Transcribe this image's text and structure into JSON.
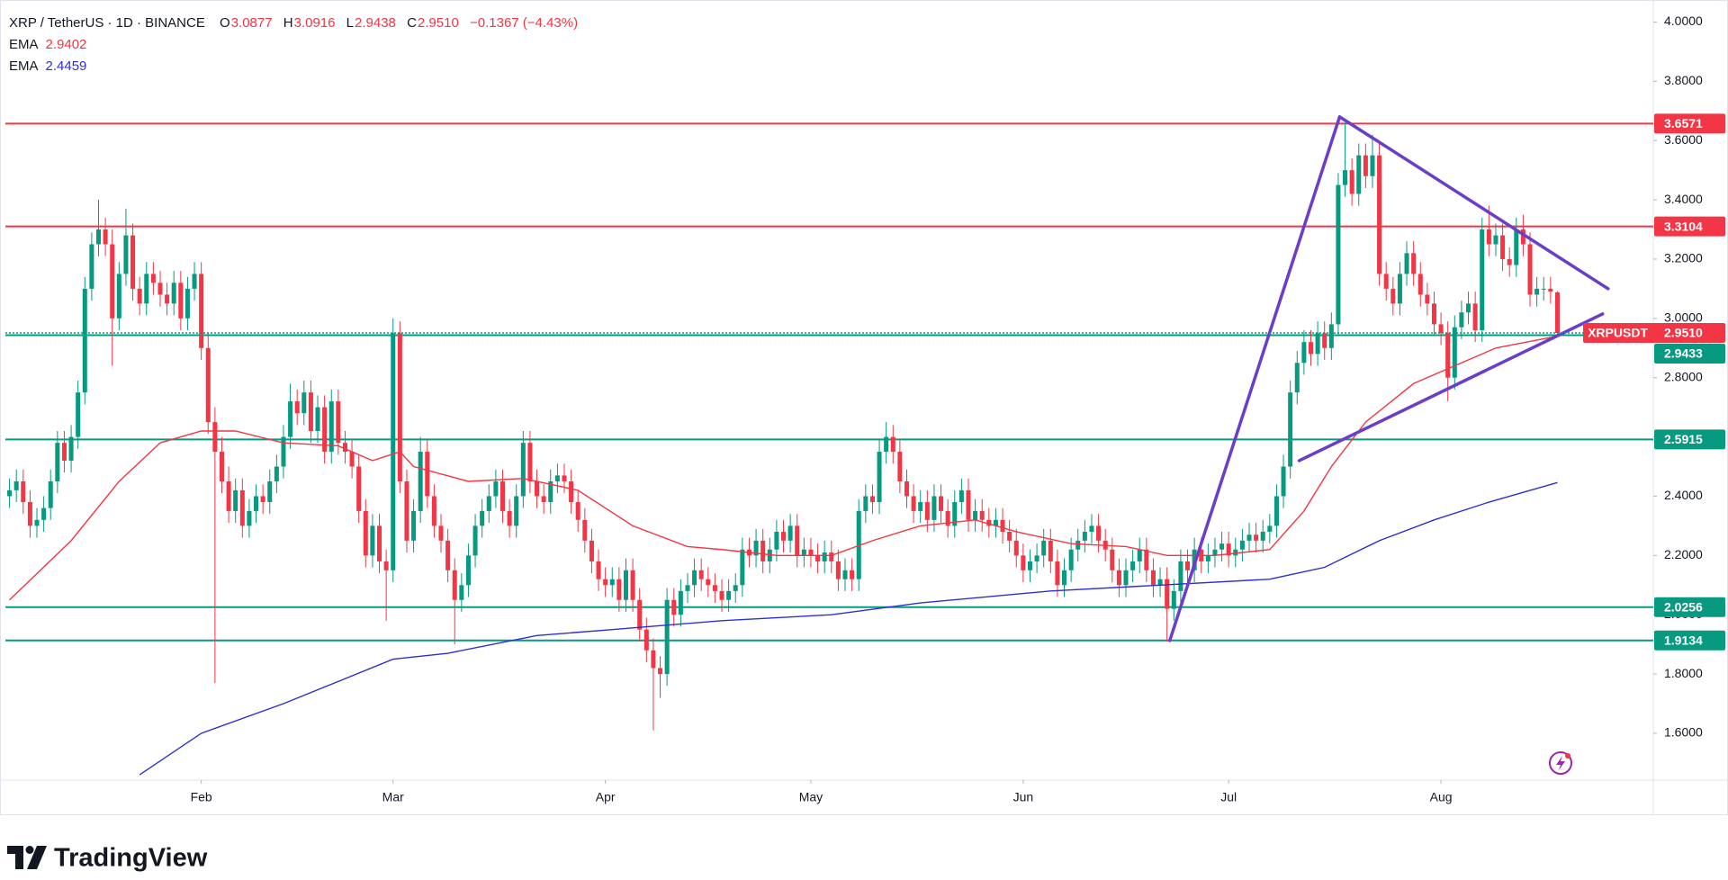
{
  "chart_data": {
    "type": "candlestick",
    "title": "XRP / TetherUS · 1D · BINANCE",
    "ohlc_labels": [
      "O",
      "H",
      "L",
      "C"
    ],
    "change": "−0.1367 (−4.43%)",
    "price_label": "2.9510",
    "symbol_tag": "XRPUSDT",
    "up_color": "#089981",
    "down_color": "#f23645",
    "open": [
      2.4,
      2.42,
      2.45,
      2.38,
      2.3,
      2.32,
      2.36,
      2.45,
      2.58,
      2.52,
      2.6,
      2.75,
      3.1,
      3.25,
      3.3,
      3.25,
      3.0,
      3.15,
      3.28,
      3.1,
      3.05,
      3.15,
      3.12,
      3.08,
      3.05,
      3.12,
      3.0,
      3.1,
      3.15,
      2.9,
      2.65,
      2.55,
      2.45,
      2.35,
      2.42,
      2.3,
      2.35,
      2.4,
      2.38,
      2.45,
      2.5,
      2.6,
      2.72,
      2.68,
      2.75,
      2.62,
      2.7,
      2.55,
      2.72,
      2.58,
      2.55,
      2.5,
      2.35,
      2.2,
      2.3,
      2.18,
      2.15,
      2.95,
      2.45,
      2.25,
      2.35,
      2.55,
      2.4,
      2.3,
      2.25,
      2.15,
      2.05,
      2.1,
      2.2,
      2.3,
      2.35,
      2.4,
      2.45,
      2.35,
      2.3,
      2.4,
      2.58,
      2.45,
      2.4,
      2.38,
      2.45,
      2.47,
      2.45,
      2.38,
      2.32,
      2.25,
      2.18,
      2.12,
      2.1,
      2.12,
      2.05,
      2.15,
      2.05,
      1.95,
      1.88,
      1.82,
      1.8,
      2.05,
      2.0,
      2.08,
      2.1,
      2.15,
      2.12,
      2.1,
      2.08,
      2.05,
      2.08,
      2.1,
      2.22,
      2.2,
      2.25,
      2.18,
      2.22,
      2.28,
      2.25,
      2.3,
      2.2,
      2.22,
      2.2,
      2.18,
      2.21,
      2.18,
      2.12,
      2.15,
      2.12,
      2.35,
      2.4,
      2.38,
      2.55,
      2.6,
      2.55,
      2.45,
      2.4,
      2.35,
      2.38,
      2.32,
      2.4,
      2.35,
      2.3,
      2.38,
      2.42,
      2.32,
      2.35,
      2.32,
      2.3,
      2.32,
      2.28,
      2.25,
      2.2,
      2.15,
      2.18,
      2.2,
      2.25,
      2.18,
      2.1,
      2.15,
      2.22,
      2.25,
      2.28,
      2.3,
      2.25,
      2.22,
      2.15,
      2.1,
      2.15,
      2.18,
      2.22,
      2.15,
      2.1,
      2.12,
      2.02,
      2.08,
      2.18,
      2.15,
      2.22,
      2.18,
      2.2,
      2.22,
      2.24,
      2.2,
      2.22,
      2.25,
      2.27,
      2.25,
      2.28,
      2.3,
      2.4,
      2.5,
      2.75,
      2.85,
      2.92,
      2.88,
      2.95,
      2.9,
      2.98,
      3.45,
      3.5,
      3.42,
      3.55,
      3.48,
      3.55,
      3.15,
      3.1,
      3.05,
      3.15,
      3.22,
      3.15,
      3.08,
      3.05,
      2.98,
      2.95,
      2.8,
      2.97,
      3.02,
      3.05,
      2.96,
      3.3,
      3.25,
      3.28,
      3.2,
      3.18,
      3.3,
      3.25,
      3.08,
      3.1,
      3.1,
      3.0877
    ],
    "high": [
      2.46,
      2.49,
      2.49,
      2.42,
      2.36,
      2.4,
      2.49,
      2.62,
      2.62,
      2.64,
      2.79,
      3.14,
      3.29,
      3.4,
      3.34,
      3.3,
      3.19,
      3.37,
      3.32,
      3.14,
      3.19,
      3.19,
      3.16,
      3.12,
      3.16,
      3.16,
      3.14,
      3.19,
      3.19,
      2.95,
      2.7,
      2.6,
      2.5,
      2.46,
      2.46,
      2.39,
      2.44,
      2.44,
      2.49,
      2.54,
      2.64,
      2.78,
      2.76,
      2.79,
      2.79,
      2.74,
      2.74,
      2.76,
      2.76,
      2.62,
      2.59,
      2.54,
      2.39,
      2.34,
      2.34,
      2.22,
      3.0,
      2.99,
      2.49,
      2.39,
      2.6,
      2.59,
      2.44,
      2.34,
      2.29,
      2.19,
      2.14,
      2.24,
      2.34,
      2.39,
      2.44,
      2.49,
      2.49,
      2.39,
      2.44,
      2.62,
      2.62,
      2.49,
      2.44,
      2.49,
      2.51,
      2.51,
      2.49,
      2.42,
      2.36,
      2.29,
      2.22,
      2.16,
      2.16,
      2.16,
      2.19,
      2.19,
      2.09,
      1.99,
      1.92,
      1.86,
      2.09,
      2.09,
      2.12,
      2.14,
      2.19,
      2.19,
      2.16,
      2.14,
      2.12,
      2.12,
      2.14,
      2.26,
      2.26,
      2.29,
      2.29,
      2.26,
      2.32,
      2.32,
      2.34,
      2.34,
      2.26,
      2.26,
      2.24,
      2.25,
      2.25,
      2.22,
      2.19,
      2.19,
      2.39,
      2.44,
      2.44,
      2.59,
      2.65,
      2.64,
      2.59,
      2.49,
      2.44,
      2.42,
      2.42,
      2.44,
      2.44,
      2.39,
      2.42,
      2.46,
      2.46,
      2.39,
      2.39,
      2.36,
      2.36,
      2.36,
      2.32,
      2.29,
      2.24,
      2.22,
      2.24,
      2.29,
      2.29,
      2.22,
      2.19,
      2.26,
      2.29,
      2.32,
      2.34,
      2.34,
      2.29,
      2.26,
      2.19,
      2.19,
      2.22,
      2.26,
      2.26,
      2.19,
      2.16,
      2.16,
      2.12,
      2.22,
      2.22,
      2.26,
      2.26,
      2.24,
      2.26,
      2.28,
      2.28,
      2.26,
      2.29,
      2.31,
      2.31,
      2.32,
      2.34,
      2.44,
      2.54,
      2.79,
      2.89,
      2.96,
      2.96,
      2.99,
      2.99,
      3.02,
      3.49,
      3.66,
      3.54,
      3.59,
      3.59,
      3.62,
      3.59,
      3.19,
      3.14,
      3.19,
      3.26,
      3.26,
      3.19,
      3.12,
      3.09,
      3.02,
      2.99,
      3.01,
      3.06,
      3.09,
      3.09,
      3.34,
      3.38,
      3.32,
      3.32,
      3.24,
      3.34,
      3.35,
      3.29,
      3.14,
      3.14,
      3.14,
      3.0916
    ],
    "low": [
      2.36,
      2.38,
      2.34,
      2.26,
      2.26,
      2.28,
      2.32,
      2.41,
      2.48,
      2.48,
      2.56,
      2.71,
      3.06,
      3.21,
      3.21,
      2.84,
      2.96,
      3.11,
      3.06,
      3.01,
      3.01,
      3.08,
      3.04,
      3.01,
      3.01,
      2.96,
      2.96,
      3.06,
      2.86,
      2.61,
      1.77,
      2.41,
      2.31,
      2.31,
      2.26,
      2.26,
      2.31,
      2.34,
      2.34,
      2.41,
      2.46,
      2.56,
      2.64,
      2.64,
      2.58,
      2.58,
      2.51,
      2.51,
      2.54,
      2.51,
      2.46,
      2.31,
      2.16,
      2.16,
      2.14,
      1.98,
      2.11,
      2.41,
      2.21,
      2.21,
      2.31,
      2.36,
      2.26,
      2.21,
      2.11,
      1.9,
      2.01,
      2.06,
      2.16,
      2.26,
      2.31,
      2.36,
      2.31,
      2.26,
      2.26,
      2.36,
      2.41,
      2.36,
      2.34,
      2.34,
      2.41,
      2.41,
      2.34,
      2.28,
      2.21,
      2.14,
      2.08,
      2.06,
      2.06,
      2.01,
      2.01,
      2.01,
      1.91,
      1.84,
      1.61,
      1.72,
      1.76,
      1.96,
      1.96,
      2.04,
      2.06,
      2.08,
      2.06,
      2.04,
      2.01,
      2.01,
      2.04,
      2.06,
      2.16,
      2.16,
      2.14,
      2.14,
      2.18,
      2.21,
      2.21,
      2.16,
      2.16,
      2.16,
      2.14,
      2.14,
      2.14,
      2.08,
      2.08,
      2.08,
      2.08,
      2.31,
      2.34,
      2.34,
      2.51,
      2.51,
      2.41,
      2.36,
      2.31,
      2.31,
      2.28,
      2.28,
      2.31,
      2.26,
      2.26,
      2.34,
      2.28,
      2.28,
      2.28,
      2.26,
      2.26,
      2.24,
      2.21,
      2.16,
      2.11,
      2.11,
      2.14,
      2.16,
      2.14,
      2.06,
      2.06,
      2.11,
      2.18,
      2.21,
      2.24,
      2.21,
      2.18,
      2.11,
      2.06,
      2.06,
      2.11,
      2.14,
      2.11,
      2.06,
      2.06,
      1.91,
      1.98,
      2.04,
      2.11,
      2.11,
      2.14,
      2.14,
      2.16,
      2.18,
      2.16,
      2.16,
      2.18,
      2.21,
      2.21,
      2.21,
      2.24,
      2.26,
      2.36,
      2.46,
      2.71,
      2.81,
      2.84,
      2.84,
      2.86,
      2.86,
      2.94,
      3.41,
      3.38,
      3.38,
      3.44,
      3.44,
      3.11,
      3.06,
      3.01,
      3.01,
      3.11,
      3.11,
      3.04,
      3.01,
      2.94,
      2.91,
      2.72,
      2.76,
      2.93,
      2.98,
      2.92,
      2.92,
      3.21,
      3.21,
      3.16,
      3.14,
      3.14,
      3.21,
      3.04,
      3.04,
      3.06,
      3.05,
      2.9438
    ],
    "close": [
      2.42,
      2.45,
      2.38,
      2.3,
      2.32,
      2.36,
      2.45,
      2.58,
      2.52,
      2.6,
      2.75,
      3.1,
      3.25,
      3.3,
      3.25,
      3.0,
      3.15,
      3.28,
      3.1,
      3.05,
      3.15,
      3.12,
      3.08,
      3.05,
      3.12,
      3.0,
      3.1,
      3.15,
      2.9,
      2.65,
      2.55,
      2.45,
      2.35,
      2.42,
      2.3,
      2.35,
      2.4,
      2.38,
      2.45,
      2.5,
      2.6,
      2.72,
      2.68,
      2.75,
      2.62,
      2.7,
      2.55,
      2.72,
      2.58,
      2.55,
      2.5,
      2.35,
      2.2,
      2.3,
      2.18,
      2.15,
      2.95,
      2.45,
      2.25,
      2.35,
      2.55,
      2.4,
      2.3,
      2.25,
      2.15,
      2.05,
      2.1,
      2.2,
      2.3,
      2.35,
      2.4,
      2.45,
      2.35,
      2.3,
      2.4,
      2.58,
      2.45,
      2.4,
      2.38,
      2.45,
      2.47,
      2.45,
      2.38,
      2.32,
      2.25,
      2.18,
      2.12,
      2.1,
      2.12,
      2.05,
      2.15,
      2.05,
      1.95,
      1.88,
      1.82,
      1.8,
      2.05,
      2.0,
      2.08,
      2.1,
      2.15,
      2.12,
      2.1,
      2.08,
      2.05,
      2.08,
      2.1,
      2.22,
      2.2,
      2.25,
      2.18,
      2.22,
      2.28,
      2.25,
      2.3,
      2.2,
      2.22,
      2.2,
      2.18,
      2.21,
      2.18,
      2.12,
      2.15,
      2.12,
      2.35,
      2.4,
      2.38,
      2.55,
      2.6,
      2.55,
      2.45,
      2.4,
      2.35,
      2.38,
      2.32,
      2.4,
      2.35,
      2.3,
      2.38,
      2.42,
      2.32,
      2.35,
      2.32,
      2.3,
      2.32,
      2.28,
      2.25,
      2.2,
      2.15,
      2.18,
      2.2,
      2.25,
      2.18,
      2.1,
      2.15,
      2.22,
      2.25,
      2.28,
      2.3,
      2.25,
      2.22,
      2.15,
      2.1,
      2.15,
      2.18,
      2.22,
      2.15,
      2.1,
      2.12,
      2.02,
      2.08,
      2.18,
      2.15,
      2.22,
      2.18,
      2.2,
      2.22,
      2.24,
      2.2,
      2.22,
      2.25,
      2.27,
      2.25,
      2.28,
      2.3,
      2.4,
      2.5,
      2.75,
      2.85,
      2.92,
      2.88,
      2.95,
      2.9,
      2.98,
      3.45,
      3.5,
      3.42,
      3.55,
      3.48,
      3.55,
      3.15,
      3.1,
      3.05,
      3.15,
      3.22,
      3.15,
      3.08,
      3.05,
      2.98,
      2.95,
      2.8,
      2.97,
      3.02,
      3.05,
      2.96,
      3.3,
      3.25,
      3.28,
      3.2,
      3.18,
      3.3,
      3.25,
      3.08,
      3.1,
      3.1,
      3.09,
      2.951
    ],
    "xlim": [
      -0.6,
      240
    ],
    "xticks": [
      {
        "value": 28,
        "label": "Feb"
      },
      {
        "value": 56,
        "label": "Mar"
      },
      {
        "value": 87,
        "label": "Apr"
      },
      {
        "value": 117,
        "label": "May"
      },
      {
        "value": 148,
        "label": "Jun"
      },
      {
        "value": 178,
        "label": "Jul"
      },
      {
        "value": 209,
        "label": "Aug"
      }
    ],
    "ylim": [
      1.442,
      4.056
    ],
    "yticks": [
      {
        "value": 1.6,
        "label": "1.6000"
      },
      {
        "value": 1.8,
        "label": "1.8000"
      },
      {
        "value": 2.0,
        "label": "2.0000"
      },
      {
        "value": 2.2,
        "label": "2.2000"
      },
      {
        "value": 2.4,
        "label": "2.4000"
      },
      {
        "value": 2.6,
        "label": "2.6000"
      },
      {
        "value": 2.8,
        "label": "2.8000"
      },
      {
        "value": 3.0,
        "label": "3.0000"
      },
      {
        "value": 3.2,
        "label": "3.2000"
      },
      {
        "value": 3.4,
        "label": "3.4000"
      },
      {
        "value": 3.6,
        "label": "3.6000"
      },
      {
        "value": 3.8,
        "label": "3.8000"
      },
      {
        "value": 4.0,
        "label": "4.0000"
      }
    ],
    "grid": false,
    "indicators": [
      {
        "name": "EMA",
        "color": "#f23645",
        "x": [
          0,
          9,
          16,
          22,
          28,
          33,
          40,
          48,
          53,
          57,
          59,
          67,
          75,
          83,
          91,
          99,
          104,
          112,
          120,
          126,
          133,
          141,
          147,
          155,
          163,
          169,
          176,
          184,
          189,
          193,
          198,
          205,
          211,
          217,
          226
        ],
        "values": [
          2.05,
          2.25,
          2.45,
          2.58,
          2.62,
          2.62,
          2.58,
          2.57,
          2.52,
          2.55,
          2.5,
          2.45,
          2.46,
          2.42,
          2.3,
          2.23,
          2.22,
          2.2,
          2.2,
          2.25,
          2.3,
          2.32,
          2.28,
          2.24,
          2.23,
          2.2,
          2.2,
          2.22,
          2.35,
          2.5,
          2.65,
          2.78,
          2.84,
          2.9,
          2.9402
        ]
      },
      {
        "name": "EMA",
        "color": "#2f2fd0",
        "x": [
          19,
          28,
          40,
          56,
          64,
          77,
          88,
          104,
          120,
          133,
          152,
          168,
          184,
          192,
          200,
          208,
          216,
          226
        ],
        "values": [
          1.46,
          1.6,
          1.7,
          1.85,
          1.87,
          1.93,
          1.95,
          1.98,
          2.0,
          2.04,
          2.08,
          2.1,
          2.12,
          2.16,
          2.25,
          2.32,
          2.38,
          2.4459
        ]
      }
    ],
    "levels": [
      {
        "value": 3.6571,
        "color": "#f23645"
      },
      {
        "value": 3.3104,
        "color": "#f23645"
      },
      {
        "value": 2.9433,
        "color": "#089981"
      },
      {
        "value": 2.5915,
        "color": "#089981"
      },
      {
        "value": 2.0256,
        "color": "#089981"
      },
      {
        "value": 1.9134,
        "color": "#089981"
      }
    ],
    "current_price_line_color": "#089981",
    "trendlines": [
      {
        "color": "#6a3ec8",
        "points": [
          [
            169.4,
            1.913
          ],
          [
            194.2,
            3.68
          ]
        ]
      },
      {
        "color": "#6a3ec8",
        "points": [
          [
            194.2,
            3.68
          ],
          [
            233.4,
            3.1
          ]
        ]
      },
      {
        "color": "#6a3ec8",
        "points": [
          [
            188.3,
            2.52
          ],
          [
            232.6,
            3.015
          ]
        ]
      }
    ]
  },
  "logo": "TradingView"
}
